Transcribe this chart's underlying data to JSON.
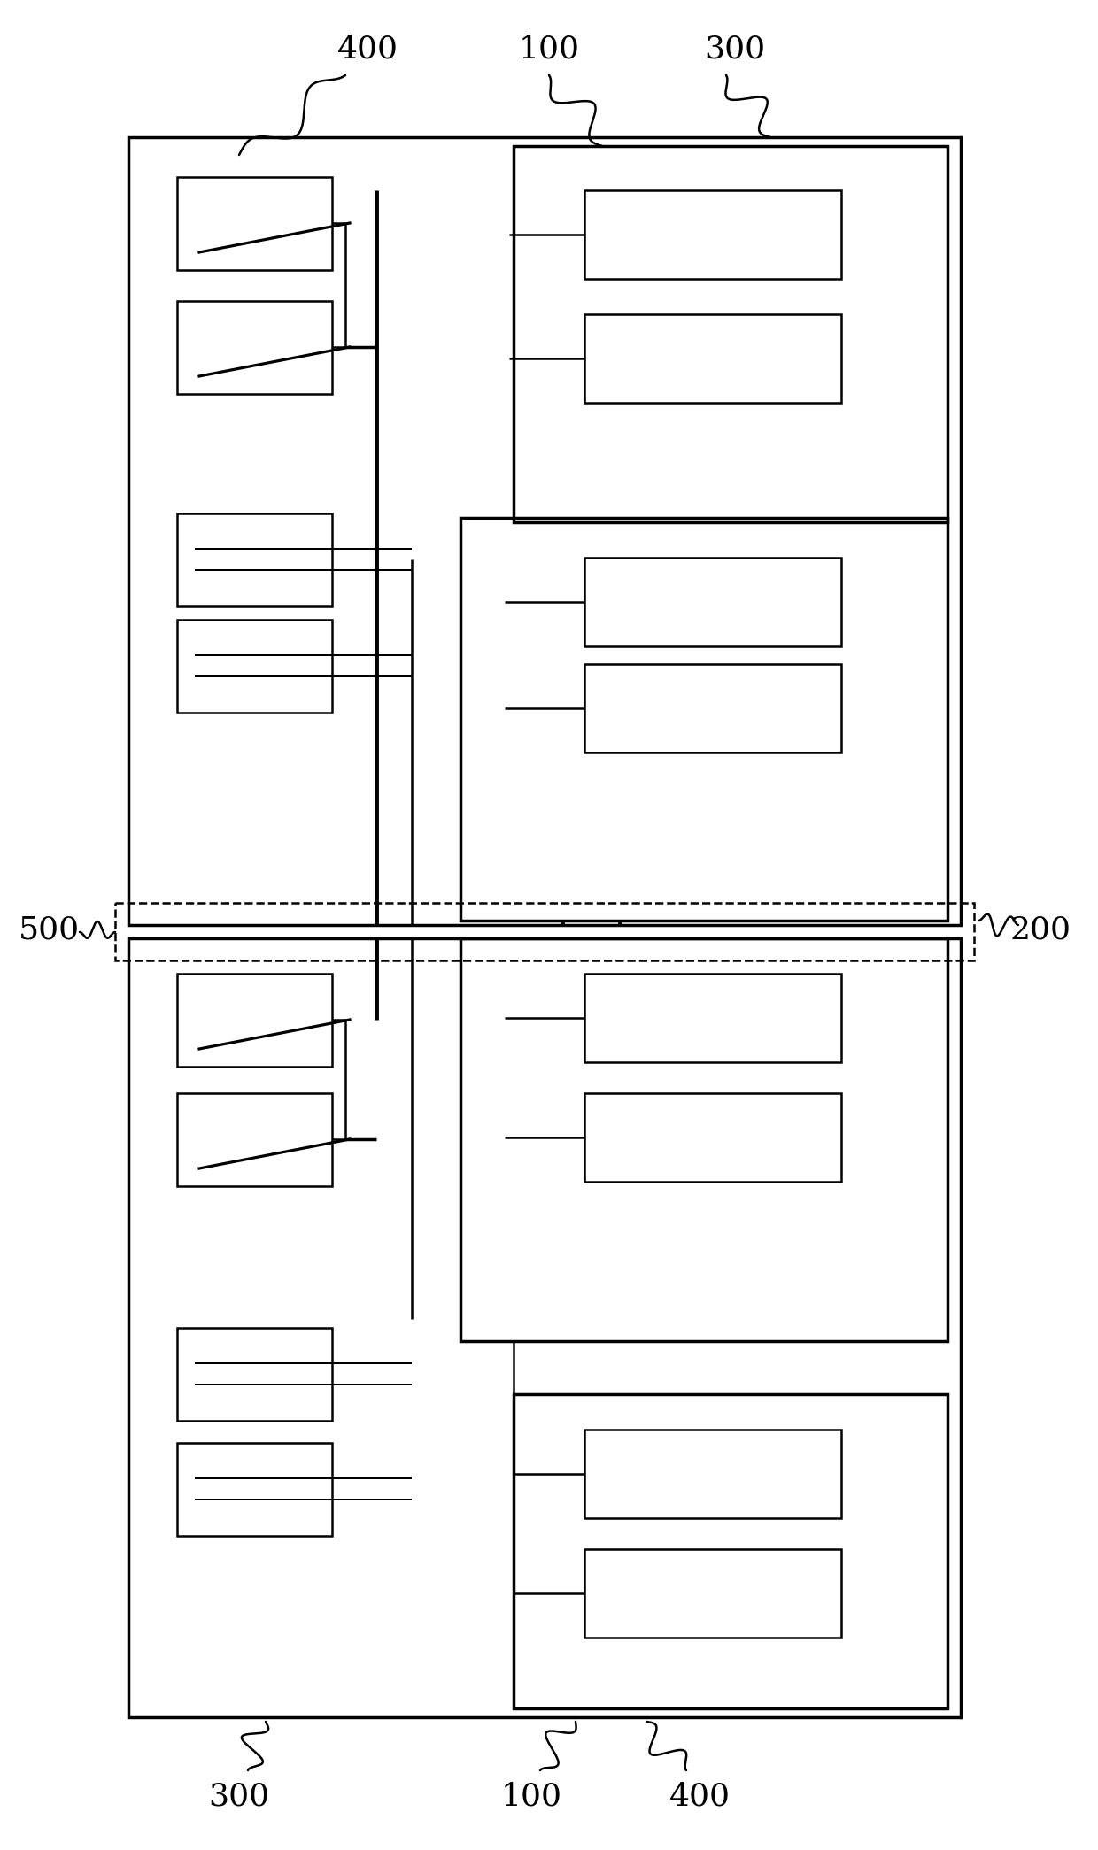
{
  "fig_width": 12.4,
  "fig_height": 20.9,
  "bg_color": "#ffffff",
  "lc": "#000000",
  "lw": 2.5,
  "tlw": 1.8,
  "label_fs": 26
}
